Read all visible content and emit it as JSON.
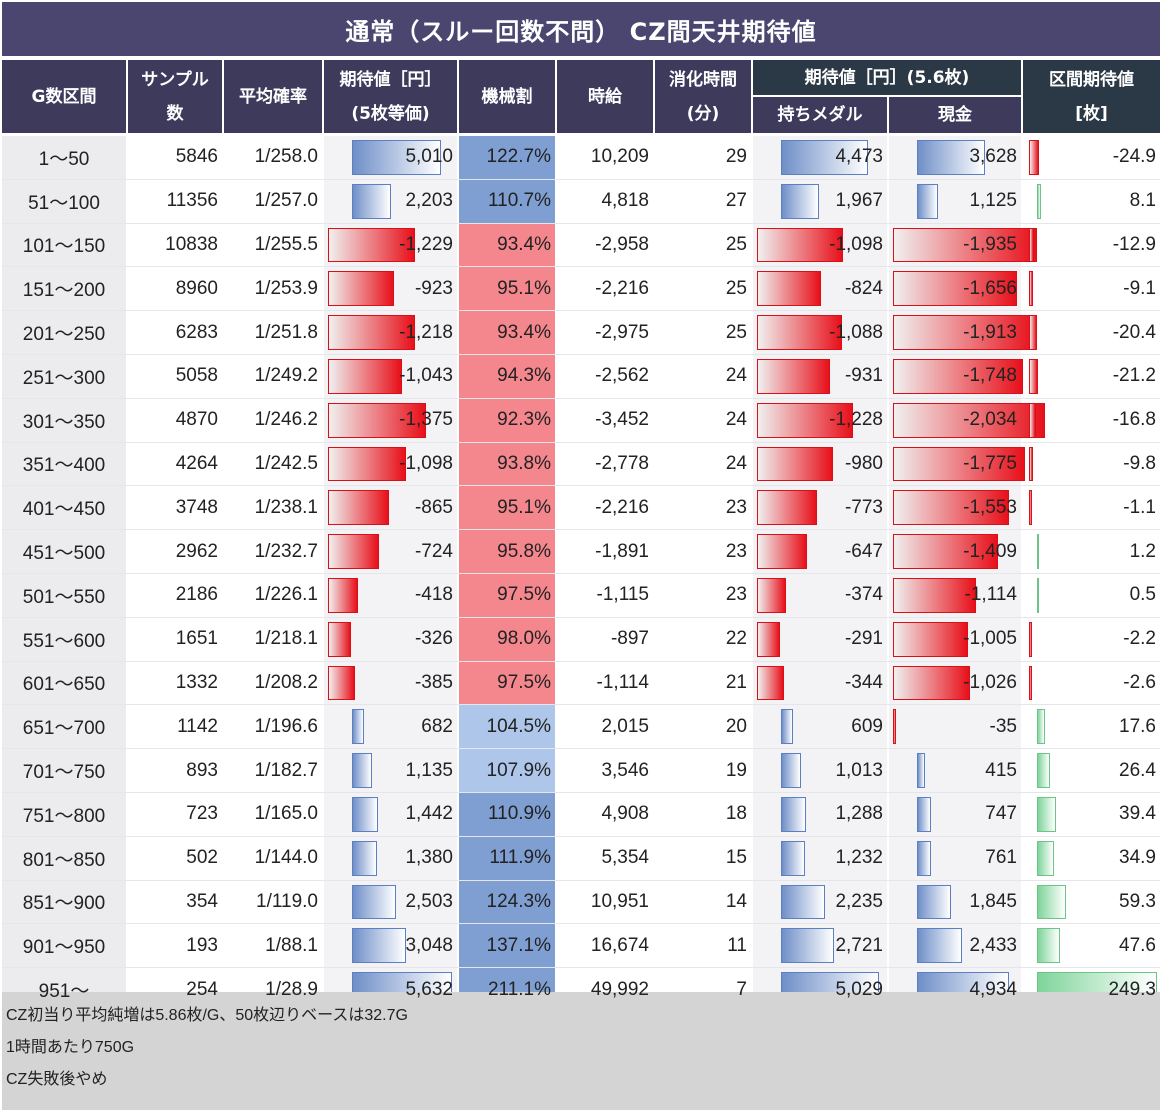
{
  "title": "通常（スルー回数不問） CZ間天井期待値",
  "headers": {
    "g_range": "G数区間",
    "sample_1": "サンプル",
    "sample_2": "数",
    "avg_prob": "平均確率",
    "ev_1": "期待値［円］",
    "ev_2": "(5枚等価)",
    "payout": "機械割",
    "hourly": "時給",
    "time_1": "消化時間",
    "time_2": "(分)",
    "ev56": "期待値［円］(5.6枚)",
    "medal": "持ちメダル",
    "cash": "現金",
    "section_1": "区間期待値",
    "section_2": "[枚]"
  },
  "colors": {
    "title_bg": "#4b4670",
    "header_bg": "#3d3a5c",
    "dark_header_bg": "#2b3845",
    "payout_pos": "#7f9fd3",
    "payout_pos_light": "#aec6ea",
    "payout_neg": "#f4868d"
  },
  "rows": [
    {
      "range": "1～50",
      "sample": "5846",
      "prob": "1/258.0",
      "ev": "5,010",
      "payout": "122.7%",
      "hourly": "10,209",
      "time": "29",
      "medal": "4,473",
      "cash": "3,628",
      "section": "-24.9",
      "ev_n": 5010,
      "payout_n": 122.7,
      "medal_n": 4473,
      "cash_n": 3628,
      "section_n": -24.9
    },
    {
      "range": "51～100",
      "sample": "11356",
      "prob": "1/257.0",
      "ev": "2,203",
      "payout": "110.7%",
      "hourly": "4,818",
      "time": "27",
      "medal": "1,967",
      "cash": "1,125",
      "section": "8.1",
      "ev_n": 2203,
      "payout_n": 110.7,
      "medal_n": 1967,
      "cash_n": 1125,
      "section_n": 8.1
    },
    {
      "range": "101～150",
      "sample": "10838",
      "prob": "1/255.5",
      "ev": "-1,229",
      "payout": "93.4%",
      "hourly": "-2,958",
      "time": "25",
      "medal": "-1,098",
      "cash": "-1,935",
      "section": "-12.9",
      "ev_n": -1229,
      "payout_n": 93.4,
      "medal_n": -1098,
      "cash_n": -1935,
      "section_n": -12.9
    },
    {
      "range": "151～200",
      "sample": "8960",
      "prob": "1/253.9",
      "ev": "-923",
      "payout": "95.1%",
      "hourly": "-2,216",
      "time": "25",
      "medal": "-824",
      "cash": "-1,656",
      "section": "-9.1",
      "ev_n": -923,
      "payout_n": 95.1,
      "medal_n": -824,
      "cash_n": -1656,
      "section_n": -9.1
    },
    {
      "range": "201～250",
      "sample": "6283",
      "prob": "1/251.8",
      "ev": "-1,218",
      "payout": "93.4%",
      "hourly": "-2,975",
      "time": "25",
      "medal": "-1,088",
      "cash": "-1,913",
      "section": "-20.4",
      "ev_n": -1218,
      "payout_n": 93.4,
      "medal_n": -1088,
      "cash_n": -1913,
      "section_n": -20.4
    },
    {
      "range": "251～300",
      "sample": "5058",
      "prob": "1/249.2",
      "ev": "-1,043",
      "payout": "94.3%",
      "hourly": "-2,562",
      "time": "24",
      "medal": "-931",
      "cash": "-1,748",
      "section": "-21.2",
      "ev_n": -1043,
      "payout_n": 94.3,
      "medal_n": -931,
      "cash_n": -1748,
      "section_n": -21.2
    },
    {
      "range": "301～350",
      "sample": "4870",
      "prob": "1/246.2",
      "ev": "-1,375",
      "payout": "92.3%",
      "hourly": "-3,452",
      "time": "24",
      "medal": "-1,228",
      "cash": "-2,034",
      "section": "-16.8",
      "ev_n": -1375,
      "payout_n": 92.3,
      "medal_n": -1228,
      "cash_n": -2034,
      "section_n": -16.8
    },
    {
      "range": "351～400",
      "sample": "4264",
      "prob": "1/242.5",
      "ev": "-1,098",
      "payout": "93.8%",
      "hourly": "-2,778",
      "time": "24",
      "medal": "-980",
      "cash": "-1,775",
      "section": "-9.8",
      "ev_n": -1098,
      "payout_n": 93.8,
      "medal_n": -980,
      "cash_n": -1775,
      "section_n": -9.8
    },
    {
      "range": "401～450",
      "sample": "3748",
      "prob": "1/238.1",
      "ev": "-865",
      "payout": "95.1%",
      "hourly": "-2,216",
      "time": "23",
      "medal": "-773",
      "cash": "-1,553",
      "section": "-1.1",
      "ev_n": -865,
      "payout_n": 95.1,
      "medal_n": -773,
      "cash_n": -1553,
      "section_n": -1.1
    },
    {
      "range": "451～500",
      "sample": "2962",
      "prob": "1/232.7",
      "ev": "-724",
      "payout": "95.8%",
      "hourly": "-1,891",
      "time": "23",
      "medal": "-647",
      "cash": "-1,409",
      "section": "1.2",
      "ev_n": -724,
      "payout_n": 95.8,
      "medal_n": -647,
      "cash_n": -1409,
      "section_n": 1.2
    },
    {
      "range": "501～550",
      "sample": "2186",
      "prob": "1/226.1",
      "ev": "-418",
      "payout": "97.5%",
      "hourly": "-1,115",
      "time": "23",
      "medal": "-374",
      "cash": "-1,114",
      "section": "0.5",
      "ev_n": -418,
      "payout_n": 97.5,
      "medal_n": -374,
      "cash_n": -1114,
      "section_n": 0.5
    },
    {
      "range": "551～600",
      "sample": "1651",
      "prob": "1/218.1",
      "ev": "-326",
      "payout": "98.0%",
      "hourly": "-897",
      "time": "22",
      "medal": "-291",
      "cash": "-1,005",
      "section": "-2.2",
      "ev_n": -326,
      "payout_n": 98.0,
      "medal_n": -291,
      "cash_n": -1005,
      "section_n": -2.2
    },
    {
      "range": "601～650",
      "sample": "1332",
      "prob": "1/208.2",
      "ev": "-385",
      "payout": "97.5%",
      "hourly": "-1,114",
      "time": "21",
      "medal": "-344",
      "cash": "-1,026",
      "section": "-2.6",
      "ev_n": -385,
      "payout_n": 97.5,
      "medal_n": -344,
      "cash_n": -1026,
      "section_n": -2.6
    },
    {
      "range": "651～700",
      "sample": "1142",
      "prob": "1/196.6",
      "ev": "682",
      "payout": "104.5%",
      "hourly": "2,015",
      "time": "20",
      "medal": "609",
      "cash": "-35",
      "section": "17.6",
      "ev_n": 682,
      "payout_n": 104.5,
      "medal_n": 609,
      "cash_n": -35,
      "section_n": 17.6
    },
    {
      "range": "701～750",
      "sample": "893",
      "prob": "1/182.7",
      "ev": "1,135",
      "payout": "107.9%",
      "hourly": "3,546",
      "time": "19",
      "medal": "1,013",
      "cash": "415",
      "section": "26.4",
      "ev_n": 1135,
      "payout_n": 107.9,
      "medal_n": 1013,
      "cash_n": 415,
      "section_n": 26.4
    },
    {
      "range": "751～800",
      "sample": "723",
      "prob": "1/165.0",
      "ev": "1,442",
      "payout": "110.9%",
      "hourly": "4,908",
      "time": "18",
      "medal": "1,288",
      "cash": "747",
      "section": "39.4",
      "ev_n": 1442,
      "payout_n": 110.9,
      "medal_n": 1288,
      "cash_n": 747,
      "section_n": 39.4
    },
    {
      "range": "801～850",
      "sample": "502",
      "prob": "1/144.0",
      "ev": "1,380",
      "payout": "111.9%",
      "hourly": "5,354",
      "time": "15",
      "medal": "1,232",
      "cash": "761",
      "section": "34.9",
      "ev_n": 1380,
      "payout_n": 111.9,
      "medal_n": 1232,
      "cash_n": 761,
      "section_n": 34.9
    },
    {
      "range": "851～900",
      "sample": "354",
      "prob": "1/119.0",
      "ev": "2,503",
      "payout": "124.3%",
      "hourly": "10,951",
      "time": "14",
      "medal": "2,235",
      "cash": "1,845",
      "section": "59.3",
      "ev_n": 2503,
      "payout_n": 124.3,
      "medal_n": 2235,
      "cash_n": 1845,
      "section_n": 59.3
    },
    {
      "range": "901～950",
      "sample": "193",
      "prob": "1/88.1",
      "ev": "3,048",
      "payout": "137.1%",
      "hourly": "16,674",
      "time": "11",
      "medal": "2,721",
      "cash": "2,433",
      "section": "47.6",
      "ev_n": 3048,
      "payout_n": 137.1,
      "medal_n": 2721,
      "cash_n": 2433,
      "section_n": 47.6
    },
    {
      "range": "951～",
      "sample": "254",
      "prob": "1/28.9",
      "ev": "5,632",
      "payout": "211.1%",
      "hourly": "49,992",
      "time": "7",
      "medal": "5,029",
      "cash": "4,934",
      "section": "249.3",
      "ev_n": 5632,
      "payout_n": 211.1,
      "medal_n": 5029,
      "cash_n": 4934,
      "section_n": 249.3
    }
  ],
  "notes": [
    "CZ初当り平均純増は5.86枚/G、50枚辺りベースは32.7G",
    "1時間あたり750G",
    "CZ失敗後やめ"
  ]
}
